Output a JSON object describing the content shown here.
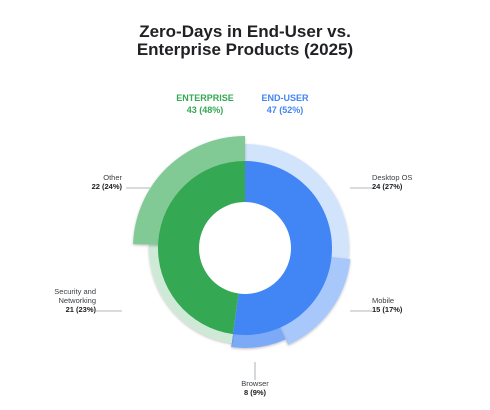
{
  "title_line1": "Zero-Days in End-User vs.",
  "title_line2": "Enterprise Products (2025)",
  "chart_data": {
    "type": "pie",
    "subtype": "nested-donut",
    "title": "Zero-Days in End-User vs. Enterprise Products (2025)",
    "inner": [
      {
        "label": "END-USER",
        "value": 47,
        "percent": 52,
        "value_label": "47 (52%)",
        "color": "#4285f4"
      },
      {
        "label": "ENTERPRISE",
        "value": 43,
        "percent": 48,
        "value_label": "43 (48%)",
        "color": "#34a853"
      }
    ],
    "outer": [
      {
        "label": "Desktop OS",
        "value": 24,
        "percent": 27,
        "value_label": "24 (27%)",
        "parent": "END-USER",
        "color": "#d2e3fc"
      },
      {
        "label": "Mobile",
        "value": 15,
        "percent": 17,
        "value_label": "15 (17%)",
        "parent": "END-USER",
        "color": "#a8c7fa"
      },
      {
        "label": "Browser",
        "value": 8,
        "percent": 9,
        "value_label": "8 (9%)",
        "parent": "END-USER",
        "color": "#7baaf7"
      },
      {
        "label": "Security and Networking",
        "label_lines": [
          "Security and",
          "Networking"
        ],
        "value": 21,
        "percent": 23,
        "value_label": "21 (23%)",
        "parent": "ENTERPRISE",
        "color": "#ceead6"
      },
      {
        "label": "Other",
        "value": 22,
        "percent": 24,
        "value_label": "22 (24%)",
        "parent": "ENTERPRISE",
        "color": "#81c995"
      }
    ]
  }
}
